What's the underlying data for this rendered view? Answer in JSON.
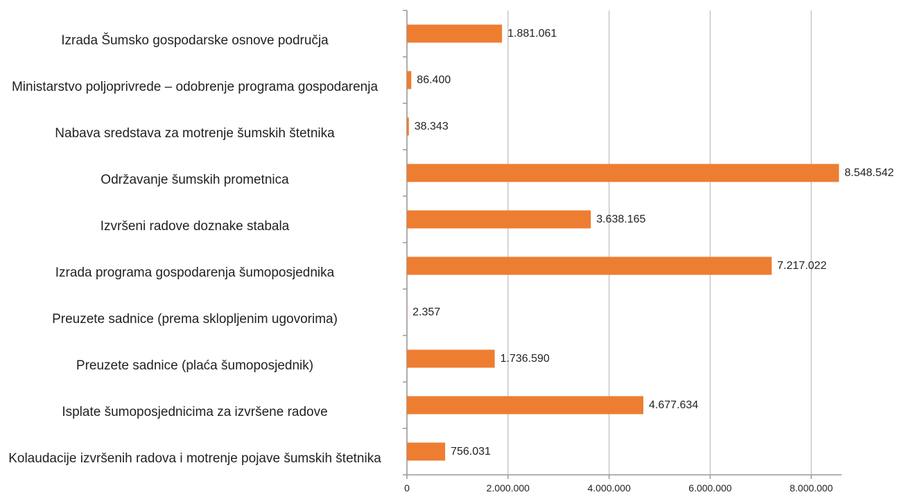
{
  "chart_data": {
    "type": "bar",
    "orientation": "horizontal",
    "categories": [
      "Izrada Šumsko gospodarske osnove područja",
      "Ministarstvo poljoprivrede – odobrenje programa gospodarenja",
      "Nabava sredstava za motrenje šumskih štetnika",
      "Održavanje šumskih prometnica",
      "Izvršeni radove doznake stabala",
      "Izrada programa gospodarenja šumoposjednika",
      "Preuzete sadnice (prema sklopljenim ugovorima)",
      "Preuzete sadnice (plaća šumoposjednik)",
      "Isplate šumoposjednicima za izvršene radove",
      "Kolaudacije izvršenih radova i motrenje pojave šumskih štetnika"
    ],
    "values": [
      1881061,
      86400,
      38343,
      8548542,
      3638165,
      7217022,
      2357,
      1736590,
      4677634,
      756031
    ],
    "value_labels": [
      "1.881.061",
      "86.400",
      "38.343",
      "8.548.542",
      "3.638.165",
      "7.217.022",
      "2.357",
      "1.736.590",
      "4.677.634",
      "756.031"
    ],
    "color": "#ed7d31",
    "xlim": [
      0,
      8600000
    ],
    "xticks": [
      0,
      {
        "value": 2000000,
        "label": "2.000.000"
      },
      {
        "value": 4000000,
        "label": "4.000.000"
      },
      {
        "value": 6000000,
        "label": "6.000.000"
      },
      {
        "value": 8000000,
        "label": "8.000.000"
      }
    ],
    "grid": true
  }
}
